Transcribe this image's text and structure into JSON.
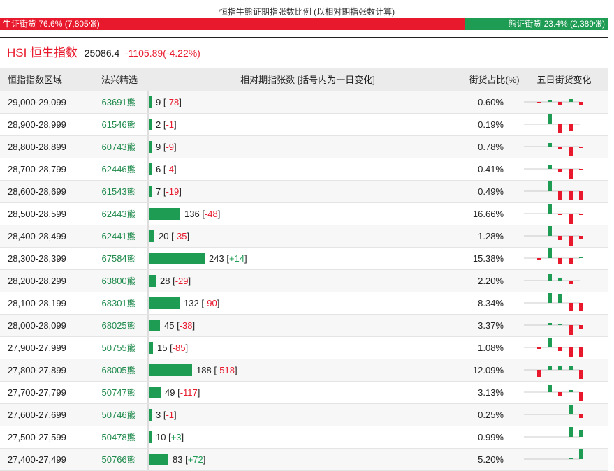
{
  "header_title": "恒指牛熊证期指张数比例 (以相对期指张数计算)",
  "ratio": {
    "bull_label": "牛证街货 76.6% (7,805张)",
    "bull_pct": 76.6,
    "bear_label": "熊证街货 23.4% (2,389张)",
    "bear_pct": 23.4
  },
  "index": {
    "name": "HSI 恒生指数",
    "price": "25086.4",
    "change": "-1105.89(-4.22%)"
  },
  "columns": {
    "range": "恒指指数区域",
    "code": "法兴精选",
    "volume": "相对期指张数 [括号内为一日变化]",
    "pct": "街货占比(%)",
    "spark": "五日街货变化"
  },
  "colors": {
    "bull": "#e8192c",
    "bear": "#1f9c54"
  },
  "code_suffix": "熊",
  "rows": [
    {
      "range": "29,000-29,099",
      "code": "63691",
      "volume": 9,
      "volume_text": "9",
      "change": "-78",
      "pct": "0.60%",
      "five_day": [
        -1,
        2,
        -5,
        4,
        -4
      ]
    },
    {
      "range": "28,900-28,999",
      "code": "61546",
      "volume": 2,
      "volume_text": "2",
      "change": "-1",
      "pct": "0.19%",
      "five_day": [
        0,
        14,
        -13,
        -10,
        0
      ]
    },
    {
      "range": "28,800-28,899",
      "code": "60743",
      "volume": 9,
      "volume_text": "9",
      "change": "-9",
      "pct": "0.78%",
      "five_day": [
        0,
        5,
        -4,
        -14,
        -2
      ]
    },
    {
      "range": "28,700-28,799",
      "code": "62446",
      "volume": 6,
      "volume_text": "6",
      "change": "-4",
      "pct": "0.41%",
      "five_day": [
        0,
        5,
        -4,
        -14,
        -2
      ]
    },
    {
      "range": "28,600-28,699",
      "code": "61543",
      "volume": 7,
      "volume_text": "7",
      "change": "-19",
      "pct": "0.49%",
      "five_day": [
        0,
        14,
        -13,
        -13,
        -13
      ]
    },
    {
      "range": "28,500-28,599",
      "code": "62443",
      "volume": 136,
      "volume_text": "136",
      "change": "-48",
      "pct": "16.66%",
      "five_day": [
        0,
        14,
        -2,
        -15,
        -2
      ]
    },
    {
      "range": "28,400-28,499",
      "code": "62441",
      "volume": 20,
      "volume_text": "20",
      "change": "-35",
      "pct": "1.28%",
      "five_day": [
        0,
        14,
        -6,
        -14,
        -5
      ]
    },
    {
      "range": "28,300-28,399",
      "code": "67584",
      "volume": 243,
      "volume_text": "243",
      "change": "+14",
      "pct": "15.38%",
      "five_day": [
        -2,
        14,
        -9,
        -9,
        2
      ]
    },
    {
      "range": "28,200-28,299",
      "code": "63800",
      "volume": 28,
      "volume_text": "28",
      "change": "-29",
      "pct": "2.20%",
      "five_day": [
        0,
        10,
        4,
        -5,
        0
      ]
    },
    {
      "range": "28,100-28,199",
      "code": "68301",
      "volume": 132,
      "volume_text": "132",
      "change": "-90",
      "pct": "8.34%",
      "five_day": [
        0,
        14,
        12,
        -12,
        -12
      ]
    },
    {
      "range": "28,000-28,099",
      "code": "68025",
      "volume": 45,
      "volume_text": "45",
      "change": "-38",
      "pct": "3.37%",
      "five_day": [
        0,
        3,
        1,
        -14,
        -6
      ]
    },
    {
      "range": "27,900-27,999",
      "code": "50755",
      "volume": 15,
      "volume_text": "15",
      "change": "-85",
      "pct": "1.08%",
      "five_day": [
        -2,
        14,
        -5,
        -13,
        -13
      ]
    },
    {
      "range": "27,800-27,899",
      "code": "68005",
      "volume": 188,
      "volume_text": "188",
      "change": "-518",
      "pct": "12.09%",
      "five_day": [
        -10,
        5,
        5,
        5,
        -13
      ]
    },
    {
      "range": "27,700-27,799",
      "code": "50747",
      "volume": 49,
      "volume_text": "49",
      "change": "-117",
      "pct": "3.13%",
      "five_day": [
        0,
        10,
        -5,
        3,
        -13
      ]
    },
    {
      "range": "27,600-27,699",
      "code": "50746",
      "volume": 3,
      "volume_text": "3",
      "change": "-1",
      "pct": "0.25%",
      "five_day": [
        0,
        0,
        0,
        14,
        -5
      ]
    },
    {
      "range": "27,500-27,599",
      "code": "50478",
      "volume": 10,
      "volume_text": "10",
      "change": "+3",
      "pct": "0.99%",
      "five_day": [
        0,
        0,
        0,
        14,
        10
      ]
    },
    {
      "range": "27,400-27,499",
      "code": "50766",
      "volume": 83,
      "volume_text": "83",
      "change": "+72",
      "pct": "5.20%",
      "five_day": [
        0,
        0,
        0,
        2,
        16
      ]
    }
  ]
}
